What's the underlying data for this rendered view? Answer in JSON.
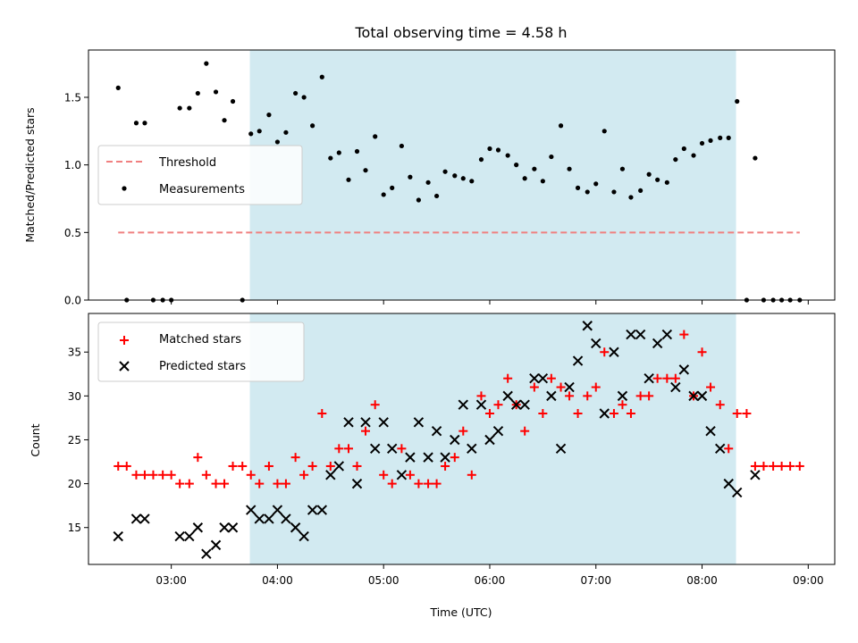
{
  "title": "Total observing time = 4.58 h",
  "colors": {
    "measurement": "#000000",
    "threshold": "#f08080",
    "matched": "#ff0000",
    "predicted": "#000000",
    "window": "#add8e6"
  },
  "chart_data": [
    {
      "type": "scatter",
      "panel": "top",
      "ylabel": "Matched/Predicted stars",
      "ylim": [
        0,
        1.85
      ],
      "yticks": [
        "0.0",
        "0.5",
        "1.0",
        "1.5"
      ],
      "ytick_values": [
        0,
        0.5,
        1.0,
        1.5
      ],
      "xlim": [
        2.22,
        9.25
      ],
      "shaded_window": [
        3.74,
        8.32
      ],
      "threshold": {
        "name": "Threshold",
        "x": [
          2.5,
          8.92
        ],
        "y": 0.5
      },
      "legend": [
        "Threshold",
        "Measurements"
      ],
      "series": [
        {
          "name": "Measurements",
          "x": [
            2.5,
            2.58,
            2.67,
            2.75,
            2.83,
            2.92,
            3.0,
            3.08,
            3.17,
            3.25,
            3.33,
            3.42,
            3.5,
            3.58,
            3.67,
            3.75,
            3.83,
            3.92,
            4.0,
            4.08,
            4.17,
            4.25,
            4.33,
            4.42,
            4.5,
            4.58,
            4.67,
            4.75,
            4.83,
            4.92,
            5.0,
            5.08,
            5.17,
            5.25,
            5.33,
            5.42,
            5.5,
            5.58,
            5.67,
            5.75,
            5.83,
            5.92,
            6.0,
            6.08,
            6.17,
            6.25,
            6.33,
            6.42,
            6.5,
            6.58,
            6.67,
            6.75,
            6.83,
            6.92,
            7.0,
            7.08,
            7.17,
            7.25,
            7.33,
            7.42,
            7.5,
            7.58,
            7.67,
            7.75,
            7.83,
            7.92,
            8.0,
            8.08,
            8.17,
            8.25,
            8.33,
            8.42,
            8.5,
            8.58,
            8.67,
            8.75,
            8.83,
            8.92
          ],
          "y": [
            1.57,
            0.0,
            1.31,
            1.31,
            0.0,
            0.0,
            0.0,
            1.42,
            1.42,
            1.53,
            1.75,
            1.54,
            1.33,
            1.47,
            0.0,
            1.23,
            1.25,
            1.37,
            1.17,
            1.24,
            1.53,
            1.5,
            1.29,
            1.65,
            1.05,
            1.09,
            0.89,
            1.1,
            0.96,
            1.21,
            0.78,
            0.83,
            1.14,
            0.91,
            0.74,
            0.87,
            0.77,
            0.95,
            0.92,
            0.9,
            0.88,
            1.04,
            1.12,
            1.11,
            1.07,
            1.0,
            0.9,
            0.97,
            0.88,
            1.06,
            1.29,
            0.97,
            0.83,
            0.8,
            0.86,
            1.25,
            0.8,
            0.97,
            0.76,
            0.81,
            0.93,
            0.89,
            0.87,
            1.04,
            1.12,
            1.07,
            1.16,
            1.18,
            1.2,
            1.2,
            1.47,
            0.0,
            1.05,
            0.0,
            0.0,
            0.0,
            0.0,
            0.0
          ]
        }
      ]
    },
    {
      "type": "scatter",
      "panel": "bottom",
      "xlabel": "Time (UTC)",
      "ylabel": "Count",
      "ylim": [
        10.8,
        39.4
      ],
      "yticks": [
        "15",
        "20",
        "25",
        "30",
        "35"
      ],
      "ytick_values": [
        15,
        20,
        25,
        30,
        35
      ],
      "xlim": [
        2.22,
        9.25
      ],
      "xticks": [
        "03:00",
        "04:00",
        "05:00",
        "06:00",
        "07:00",
        "08:00",
        "09:00"
      ],
      "xtick_values": [
        3,
        4,
        5,
        6,
        7,
        8,
        9
      ],
      "shaded_window": [
        3.74,
        8.32
      ],
      "legend": [
        "Matched stars",
        "Predicted stars"
      ],
      "series": [
        {
          "name": "Matched stars",
          "marker": "plus",
          "x": [
            2.5,
            2.58,
            2.67,
            2.75,
            2.83,
            2.92,
            3.0,
            3.08,
            3.17,
            3.25,
            3.33,
            3.42,
            3.5,
            3.58,
            3.67,
            3.75,
            3.83,
            3.92,
            4.0,
            4.08,
            4.17,
            4.25,
            4.33,
            4.42,
            4.5,
            4.58,
            4.67,
            4.75,
            4.83,
            4.92,
            5.0,
            5.08,
            5.17,
            5.25,
            5.33,
            5.42,
            5.5,
            5.58,
            5.67,
            5.75,
            5.83,
            5.92,
            6.0,
            6.08,
            6.17,
            6.25,
            6.33,
            6.42,
            6.5,
            6.58,
            6.67,
            6.75,
            6.83,
            6.92,
            7.0,
            7.08,
            7.17,
            7.25,
            7.33,
            7.42,
            7.5,
            7.58,
            7.67,
            7.75,
            7.83,
            7.92,
            8.0,
            8.08,
            8.17,
            8.25,
            8.33,
            8.42,
            8.5,
            8.58,
            8.67,
            8.75,
            8.83,
            8.92
          ],
          "y": [
            22,
            22,
            21,
            21,
            21,
            21,
            21,
            20,
            20,
            23,
            21,
            20,
            20,
            22,
            22,
            21,
            20,
            22,
            20,
            20,
            23,
            21,
            22,
            28,
            22,
            24,
            24,
            22,
            26,
            29,
            21,
            20,
            24,
            21,
            20,
            20,
            20,
            22,
            23,
            26,
            21,
            30,
            28,
            29,
            32,
            29,
            26,
            31,
            28,
            32,
            31,
            30,
            28,
            30,
            31,
            35,
            28,
            29,
            28,
            30,
            30,
            32,
            32,
            32,
            37,
            30,
            35,
            31,
            29,
            24,
            28,
            28,
            22,
            22,
            22,
            22,
            22,
            22
          ]
        },
        {
          "name": "Predicted stars",
          "marker": "x",
          "x": [
            2.5,
            2.67,
            2.75,
            3.08,
            3.17,
            3.25,
            3.33,
            3.42,
            3.5,
            3.58,
            3.75,
            3.83,
            3.92,
            4.0,
            4.08,
            4.17,
            4.25,
            4.33,
            4.42,
            4.5,
            4.58,
            4.67,
            4.75,
            4.83,
            4.92,
            5.0,
            5.08,
            5.17,
            5.25,
            5.33,
            5.42,
            5.5,
            5.58,
            5.67,
            5.75,
            5.83,
            5.92,
            6.0,
            6.08,
            6.17,
            6.25,
            6.33,
            6.42,
            6.5,
            6.58,
            6.67,
            6.75,
            6.83,
            6.92,
            7.0,
            7.08,
            7.17,
            7.25,
            7.33,
            7.42,
            7.5,
            7.58,
            7.67,
            7.75,
            7.83,
            7.92,
            8.0,
            8.08,
            8.17,
            8.25,
            8.33,
            8.5
          ],
          "y": [
            14,
            16,
            16,
            14,
            14,
            15,
            12,
            13,
            15,
            15,
            17,
            16,
            16,
            17,
            16,
            15,
            14,
            17,
            17,
            21,
            22,
            27,
            20,
            27,
            24,
            27,
            24,
            21,
            23,
            27,
            23,
            26,
            23,
            25,
            29,
            24,
            29,
            25,
            26,
            30,
            29,
            29,
            32,
            32,
            30,
            24,
            31,
            34,
            38,
            36,
            28,
            35,
            30,
            37,
            37,
            32,
            36,
            37,
            31,
            33,
            30,
            30,
            26,
            24,
            20,
            19,
            21
          ]
        }
      ]
    }
  ]
}
